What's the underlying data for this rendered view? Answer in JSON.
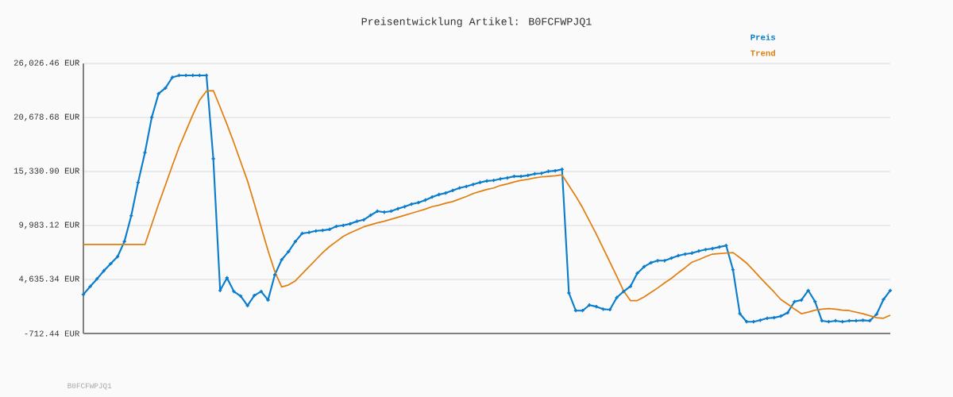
{
  "chart_data": {
    "type": "line",
    "title": "Preisentwicklung Artikel: B0FCFWPJQ1",
    "categories": [
      null,
      null,
      null,
      null,
      null,
      null,
      null,
      null,
      null,
      null,
      null,
      null,
      null,
      null,
      null,
      null,
      null,
      null,
      null,
      null,
      null,
      null,
      null,
      null,
      null,
      null,
      null,
      null,
      null,
      null,
      null,
      null,
      null,
      null,
      null,
      null,
      null,
      null,
      null,
      null,
      null,
      null,
      null,
      null,
      null,
      null,
      null,
      null,
      null,
      null,
      null,
      null,
      null,
      null,
      null,
      null,
      null,
      null,
      null,
      null,
      null,
      null,
      null,
      null,
      null,
      null,
      null,
      null,
      null,
      null,
      null,
      null,
      null,
      null,
      null,
      null,
      null,
      null,
      null,
      null,
      null,
      null,
      null,
      null,
      null,
      null,
      null,
      null,
      null,
      null,
      null,
      null,
      null,
      null,
      null,
      null,
      null,
      null,
      null,
      null,
      null,
      null,
      null,
      null,
      null,
      null,
      null,
      null,
      null,
      null,
      null,
      null,
      null,
      null,
      null,
      null,
      null,
      null,
      null
    ],
    "series": [
      {
        "name": "Preis",
        "color": "#0a7ccc",
        "marker": "cross",
        "values": [
          3150,
          3950,
          4700,
          5500,
          6200,
          6900,
          8400,
          10950,
          14250,
          17200,
          20700,
          23050,
          23600,
          24650,
          24850,
          24850,
          24850,
          24850,
          24850,
          16600,
          3550,
          4800,
          3450,
          3000,
          2050,
          3050,
          3450,
          2600,
          5100,
          6600,
          7400,
          8400,
          9200,
          9300,
          9450,
          9500,
          9600,
          9900,
          10000,
          10150,
          10400,
          10550,
          11000,
          11400,
          11300,
          11400,
          11650,
          11850,
          12100,
          12250,
          12500,
          12800,
          13050,
          13200,
          13450,
          13700,
          13850,
          14050,
          14250,
          14400,
          14450,
          14600,
          14700,
          14850,
          14850,
          14950,
          15100,
          15150,
          15350,
          15400,
          15550,
          3300,
          1550,
          1550,
          2100,
          1950,
          1700,
          1650,
          2850,
          3450,
          3950,
          5250,
          5900,
          6300,
          6500,
          6500,
          6750,
          7000,
          7150,
          7250,
          7450,
          7600,
          7700,
          7850,
          8000,
          5600,
          1250,
          450,
          450,
          600,
          800,
          850,
          1000,
          1350,
          2450,
          2600,
          3550,
          2450,
          550,
          450,
          550,
          450,
          550,
          550,
          600,
          550,
          1200,
          2650,
          3550
        ]
      },
      {
        "name": "Trend",
        "color": "#e07f10",
        "marker": "none",
        "values": [
          8100,
          8100,
          8100,
          8100,
          8100,
          8100,
          8100,
          8100,
          8100,
          8100,
          10100,
          12100,
          14000,
          15900,
          17750,
          19350,
          20950,
          22400,
          23300,
          23350,
          21700,
          20000,
          18200,
          16300,
          14400,
          12150,
          9800,
          7500,
          5400,
          3900,
          4100,
          4500,
          5200,
          5900,
          6600,
          7300,
          7900,
          8400,
          8900,
          9250,
          9550,
          9850,
          10050,
          10250,
          10400,
          10600,
          10800,
          11000,
          11200,
          11400,
          11600,
          11850,
          12000,
          12200,
          12350,
          12600,
          12850,
          13150,
          13350,
          13550,
          13700,
          13950,
          14100,
          14300,
          14450,
          14550,
          14700,
          14800,
          14850,
          14900,
          15000,
          13950,
          12900,
          11750,
          10450,
          9150,
          7750,
          6350,
          4950,
          3500,
          2550,
          2550,
          2900,
          3350,
          3800,
          4300,
          4750,
          5300,
          5800,
          6350,
          6600,
          6900,
          7150,
          7200,
          7250,
          7300,
          6800,
          6250,
          5550,
          4800,
          4100,
          3400,
          2650,
          2200,
          1700,
          1250,
          1400,
          1600,
          1700,
          1750,
          1700,
          1600,
          1550,
          1400,
          1250,
          1050,
          850,
          800,
          1100
        ]
      }
    ],
    "ylim": [
      -712.44,
      26026.46
    ],
    "yticks": [
      {
        "value": -712.44,
        "label": "-712.44 EUR"
      },
      {
        "value": 4635.34,
        "label": "4,635.34 EUR"
      },
      {
        "value": 9983.12,
        "label": "9,983.12 EUR"
      },
      {
        "value": 15330.9,
        "label": "15,330.90 EUR"
      },
      {
        "value": 20678.68,
        "label": "20,678.68 EUR"
      },
      {
        "value": 26026.46,
        "label": "26,026.46 EUR"
      }
    ],
    "grid": "y",
    "legend": "top right",
    "tick_labels": "y",
    "annotations": [
      "B0FCFWPJQ1"
    ]
  }
}
